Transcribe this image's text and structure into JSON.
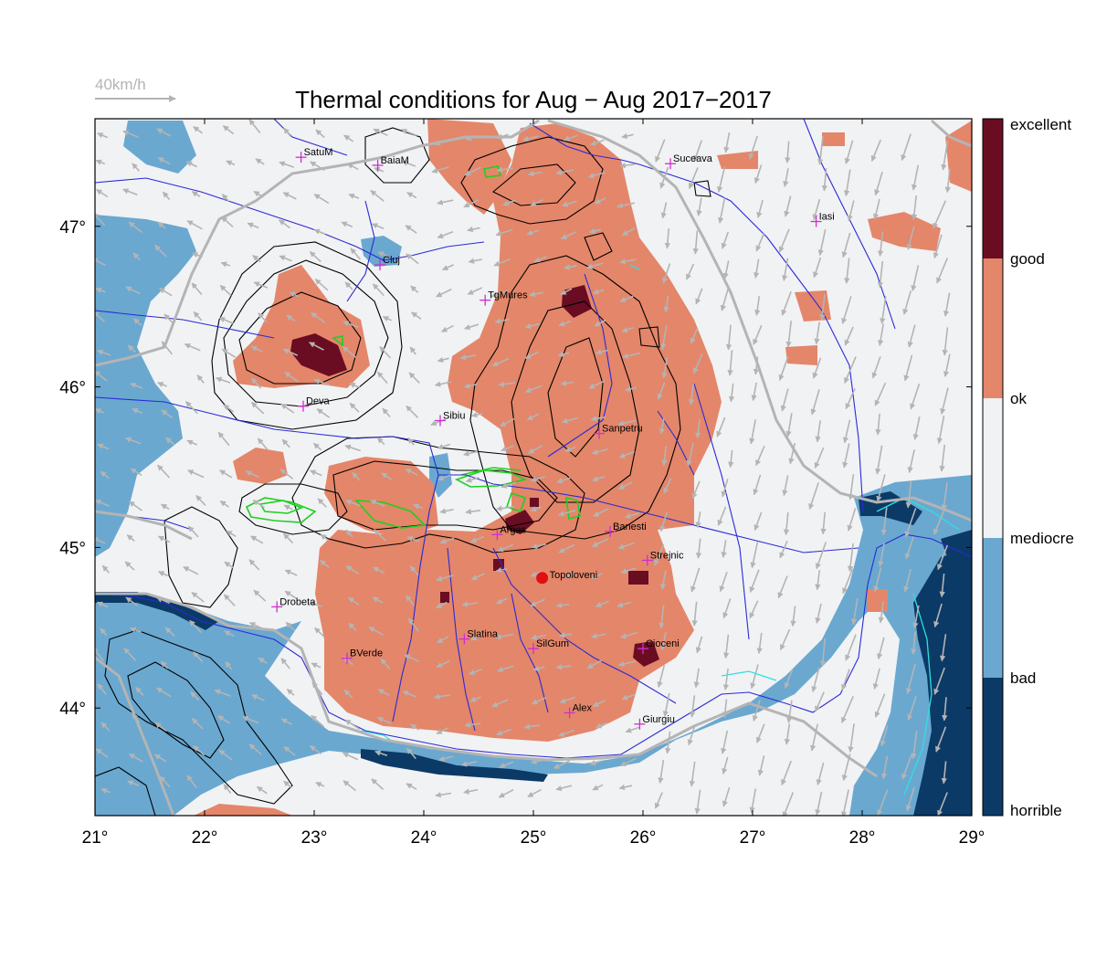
{
  "title": "Thermal conditions for Aug − Aug  2017−2017",
  "wind_legend": {
    "label": "40km/h",
    "color": "#b4b4b4"
  },
  "map": {
    "lon_range": [
      21,
      29
    ],
    "lat_range": [
      43.33,
      47.67
    ],
    "x_ticks": [
      "21°",
      "22°",
      "23°",
      "24°",
      "25°",
      "26°",
      "27°",
      "28°",
      "29°"
    ],
    "x_tick_values": [
      21,
      22,
      23,
      24,
      25,
      26,
      27,
      28,
      29
    ],
    "y_ticks": [
      "44°",
      "45°",
      "46°",
      "47°"
    ],
    "y_tick_values": [
      44,
      45,
      46,
      47
    ],
    "colors": {
      "horrible": "#0b3a67",
      "bad": "#6aa8d0",
      "mediocre": "#f1f2f4",
      "ok": "#e4866a",
      "good": "#6a0d22",
      "rivers": "#2a2ad6",
      "borders": "#b4b4b4",
      "contours": "#000000",
      "green_contours": "#1ed01e",
      "cities": "#d02ed0",
      "highlight": "#e01010"
    }
  },
  "cities": [
    {
      "name": "SatuM",
      "lon": 22.88,
      "lat": 47.43
    },
    {
      "name": "BaiaM",
      "lon": 23.58,
      "lat": 47.38
    },
    {
      "name": "Suceava",
      "lon": 26.25,
      "lat": 47.39
    },
    {
      "name": "Iasi",
      "lon": 27.58,
      "lat": 47.03
    },
    {
      "name": "Cluj",
      "lon": 23.6,
      "lat": 46.76
    },
    {
      "name": "TgMures",
      "lon": 24.56,
      "lat": 46.54
    },
    {
      "name": "Deva",
      "lon": 22.9,
      "lat": 45.88
    },
    {
      "name": "Sibiu",
      "lon": 24.15,
      "lat": 45.79
    },
    {
      "name": "Sanpetru",
      "lon": 25.6,
      "lat": 45.71
    },
    {
      "name": "Arges",
      "lon": 24.67,
      "lat": 45.08
    },
    {
      "name": "Banesti",
      "lon": 25.7,
      "lat": 45.1
    },
    {
      "name": "Strejnic",
      "lon": 26.04,
      "lat": 44.92
    },
    {
      "name": "Drobeta",
      "lon": 22.66,
      "lat": 44.63
    },
    {
      "name": "Slatina",
      "lon": 24.37,
      "lat": 44.43
    },
    {
      "name": "SilGum",
      "lon": 25.0,
      "lat": 44.37
    },
    {
      "name": "BVerde",
      "lon": 23.3,
      "lat": 44.31
    },
    {
      "name": "Alex",
      "lon": 25.33,
      "lat": 43.97
    },
    {
      "name": "Giurgiu",
      "lon": 25.97,
      "lat": 43.9
    },
    {
      "name": "Cioceni",
      "lon": 26.0,
      "lat": 44.37
    }
  ],
  "highlight_site": {
    "name": "Topoloveni",
    "lon": 25.08,
    "lat": 44.81
  },
  "colorbar": {
    "labels": [
      "excellent",
      "good",
      "ok",
      "mediocre",
      "bad",
      "horrible"
    ],
    "colors": [
      "#6a0d22",
      "#e4866a",
      "#f1f2f4",
      "#6aa8d0",
      "#0b3a67"
    ]
  }
}
